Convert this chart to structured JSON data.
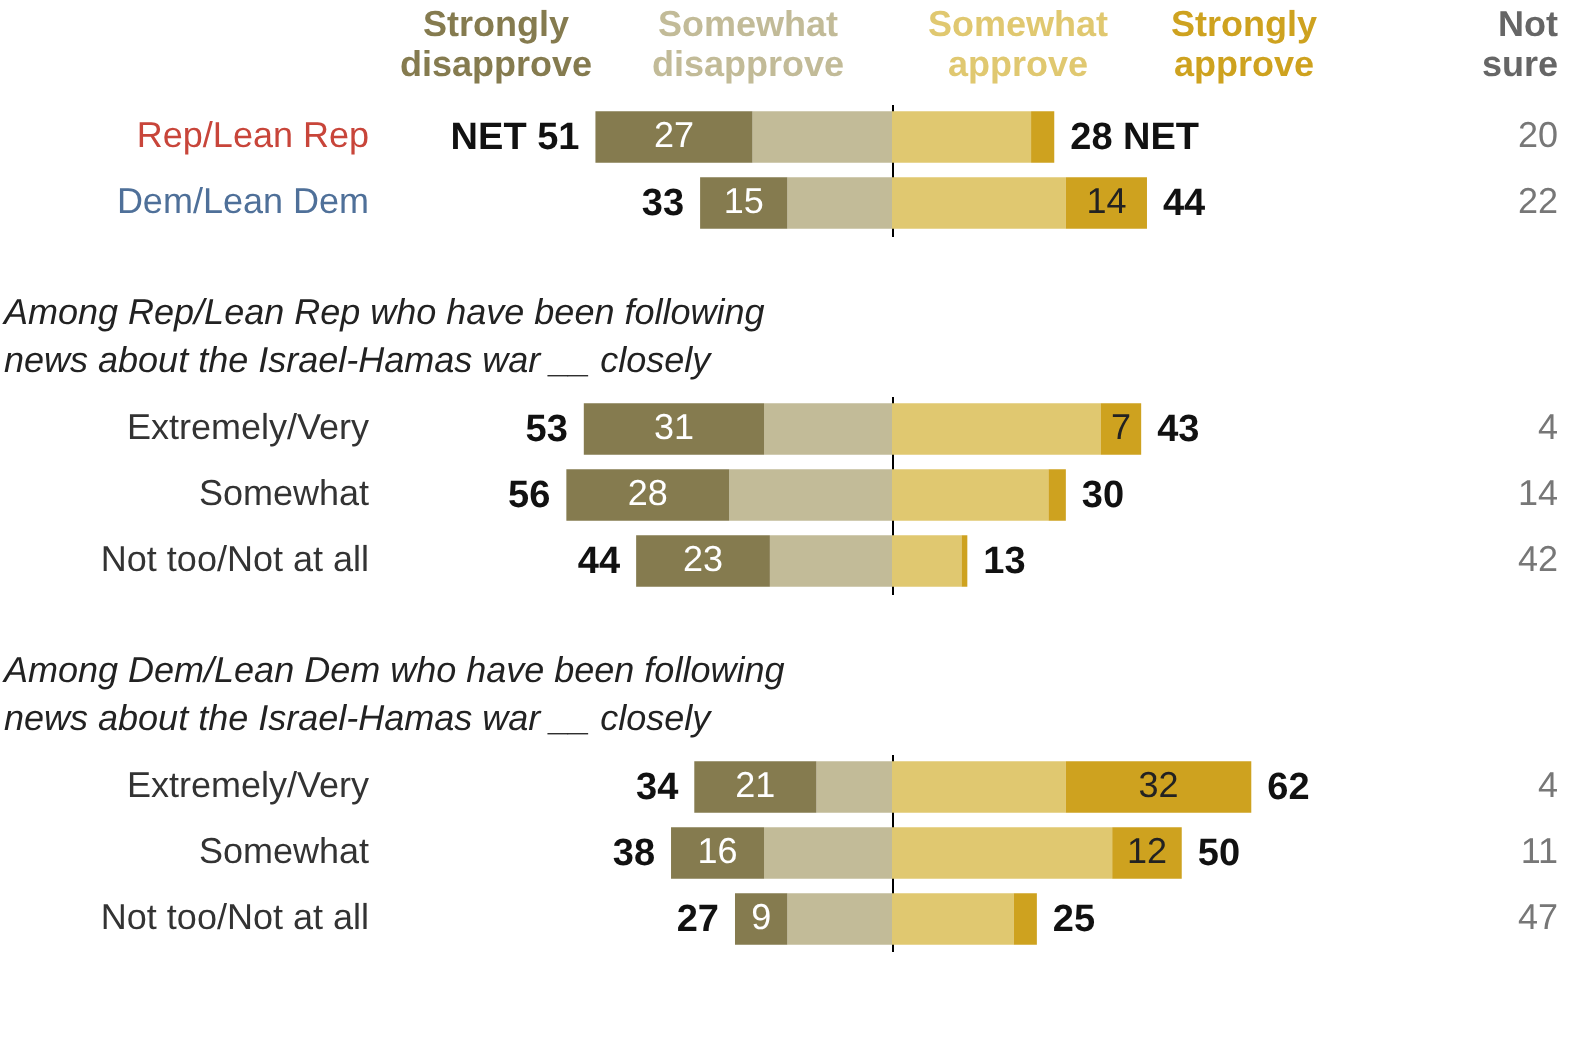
{
  "chart_data": [
    {
      "type": "bar",
      "orientation": "horizontal",
      "stacked": true,
      "legend": "top",
      "tick_labels": "y",
      "categories": [
        "Rep/Lean Rep",
        "Dem/Lean Dem"
      ],
      "series": [
        {
          "name": "Somewhat disapprove",
          "color": "#c2bb98",
          "values": [
            24,
            18
          ]
        },
        {
          "name": "Strongly disapprove",
          "color": "#857b4f",
          "values": [
            27,
            15
          ],
          "value_labels": [
            "27",
            "15"
          ]
        }
      ],
      "totals": [
        "NET 51",
        "33"
      ]
    },
    {
      "type": "bar",
      "orientation": "horizontal",
      "stacked": true,
      "legend": "top",
      "tick_labels": false,
      "categories": [
        null,
        null
      ],
      "series": [
        {
          "name": "Somewhat approve",
          "color": "#e0c870",
          "values": [
            24,
            30
          ]
        },
        {
          "name": "Strongly approve",
          "color": "#cea21f",
          "values": [
            4,
            14
          ],
          "value_labels": [
            null,
            "14"
          ]
        }
      ],
      "totals": [
        "28 NET",
        "44"
      ],
      "annotations": [
        "Not sure",
        "20",
        "22"
      ]
    },
    {
      "type": "bar",
      "orientation": "horizontal",
      "stacked": true,
      "tick_labels": "y",
      "title": "Among Rep/Lean Rep who have been following news about the Israel-Hamas war __ closely",
      "categories": [
        "Extremely/Very",
        "Somewhat",
        "Not too/Not at all"
      ],
      "series": [
        {
          "color": "#c2bb98",
          "values": [
            22,
            28,
            21
          ]
        },
        {
          "color": "#857b4f",
          "values": [
            31,
            28,
            23
          ],
          "value_labels": [
            "31",
            "28",
            "23"
          ]
        }
      ],
      "totals": [
        "53",
        "56",
        "44"
      ]
    },
    {
      "type": "bar",
      "orientation": "horizontal",
      "stacked": true,
      "tick_labels": false,
      "categories": [
        null,
        null,
        null
      ],
      "series": [
        {
          "color": "#e0c870",
          "values": [
            36,
            27,
            12
          ]
        },
        {
          "color": "#cea21f",
          "values": [
            7,
            3,
            1
          ],
          "value_labels": [
            "7",
            null,
            null
          ]
        }
      ],
      "totals": [
        "43",
        "30",
        "13"
      ],
      "annotations": [
        "4",
        "14",
        "42"
      ]
    },
    {
      "type": "bar",
      "orientation": "horizontal",
      "stacked": true,
      "tick_labels": "y",
      "title": "Among Dem/Lean Dem who have been following news about the Israel-Hamas war __ closely",
      "categories": [
        "Extremely/Very",
        "Somewhat",
        "Not too/Not at all"
      ],
      "series": [
        {
          "color": "#c2bb98",
          "values": [
            13,
            22,
            18
          ]
        },
        {
          "color": "#857b4f",
          "values": [
            21,
            16,
            9
          ],
          "value_labels": [
            "21",
            "16",
            "9"
          ]
        }
      ],
      "totals": [
        "34",
        "38",
        "27"
      ]
    },
    {
      "type": "bar",
      "orientation": "horizontal",
      "stacked": true,
      "tick_labels": false,
      "categories": [
        null,
        null,
        null
      ],
      "series": [
        {
          "color": "#e0c870",
          "values": [
            30,
            38,
            21
          ]
        },
        {
          "color": "#cea21f",
          "values": [
            32,
            12,
            4
          ],
          "value_labels": [
            "32",
            "12",
            null
          ]
        }
      ],
      "totals": [
        "62",
        "50",
        "25"
      ],
      "annotations": [
        "4",
        "11",
        "47"
      ]
    }
  ]
}
